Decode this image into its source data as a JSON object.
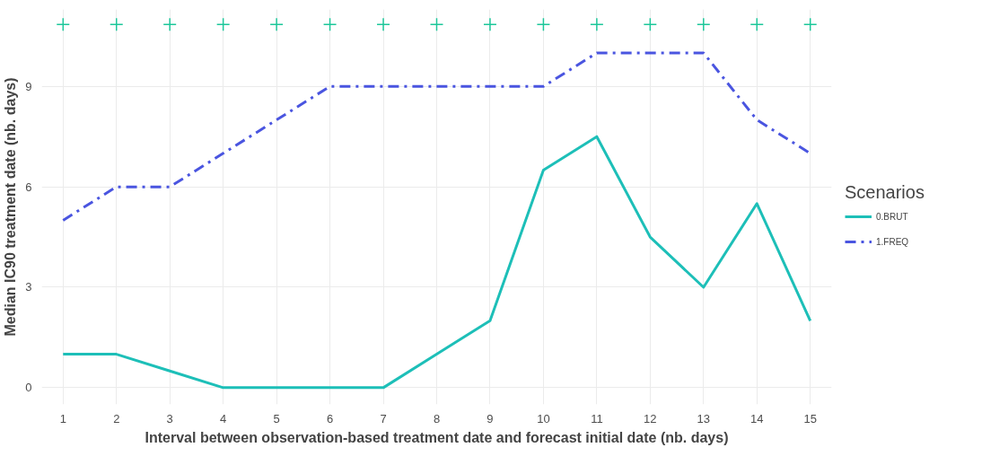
{
  "chart_data": {
    "type": "line",
    "xlabel": "Interval between observation-based treatment date and forecast initial date (nb. days)",
    "ylabel": "Median IC90 treatment date (nb. days)",
    "legend_title": "Scenarios",
    "x": [
      1,
      2,
      3,
      4,
      5,
      6,
      7,
      8,
      9,
      10,
      11,
      12,
      13,
      14,
      15
    ],
    "series": [
      {
        "name": "0.BRUT",
        "color": "#1dbfb8",
        "line_style": "solid",
        "values": [
          1,
          1,
          0.5,
          0,
          0,
          0,
          0,
          1,
          2,
          6.5,
          7.5,
          4.5,
          3,
          5.5,
          2
        ]
      },
      {
        "name": "1.FREQ",
        "color": "#4a55e0",
        "line_style": "dashed",
        "values": [
          5,
          6,
          6,
          7,
          8,
          9,
          9,
          9,
          9,
          9,
          10,
          10,
          10,
          8,
          7
        ]
      },
      {
        "type": "scatter",
        "marker": "cross",
        "color": "#1dc79a",
        "values": [
          10.85,
          10.85,
          10.85,
          10.85,
          10.85,
          10.85,
          10.85,
          10.85,
          10.85,
          10.85,
          10.85,
          10.85,
          10.85,
          10.85,
          10.85
        ]
      }
    ],
    "xlim": [
      0.6,
      15.4
    ],
    "ylim": [
      -0.5,
      11.3
    ],
    "xticks": [
      1,
      2,
      3,
      4,
      5,
      6,
      7,
      8,
      9,
      10,
      11,
      12,
      13,
      14,
      15
    ],
    "yticks": [
      0,
      3,
      6,
      9
    ],
    "grid": true,
    "legend": "right"
  }
}
